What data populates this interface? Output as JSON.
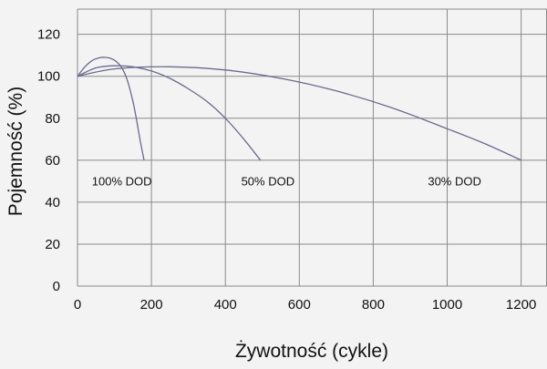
{
  "chart_data": {
    "type": "line",
    "xlabel": "Żywotność (cykle)",
    "ylabel": "Pojemność (%)",
    "xlim": [
      0,
      1270
    ],
    "ylim": [
      0,
      132
    ],
    "xticks": [
      0,
      200,
      400,
      600,
      800,
      1000,
      1200
    ],
    "yticks": [
      0,
      20,
      40,
      60,
      80,
      100,
      120
    ],
    "grid": true,
    "line_color": "#6a6a8e",
    "series": [
      {
        "name": "100% DOD",
        "x": [
          0,
          20,
          40,
          60,
          75,
          90,
          105,
          120,
          135,
          150,
          160,
          170,
          180
        ],
        "y": [
          100,
          104.5,
          107.5,
          108.8,
          109,
          108.5,
          107,
          104,
          98,
          88,
          79,
          69,
          60
        ]
      },
      {
        "name": "50% DOD",
        "x": [
          0,
          50,
          100,
          150,
          200,
          250,
          300,
          350,
          400,
          450,
          495
        ],
        "y": [
          100,
          104,
          105,
          104.5,
          102.5,
          99,
          94,
          88,
          80,
          70,
          60
        ]
      },
      {
        "name": "30% DOD",
        "x": [
          0,
          100,
          250,
          400,
          550,
          700,
          850,
          1000,
          1100,
          1200
        ],
        "y": [
          100,
          103.5,
          104.5,
          103,
          99,
          93,
          85,
          75,
          68,
          60
        ]
      }
    ]
  }
}
